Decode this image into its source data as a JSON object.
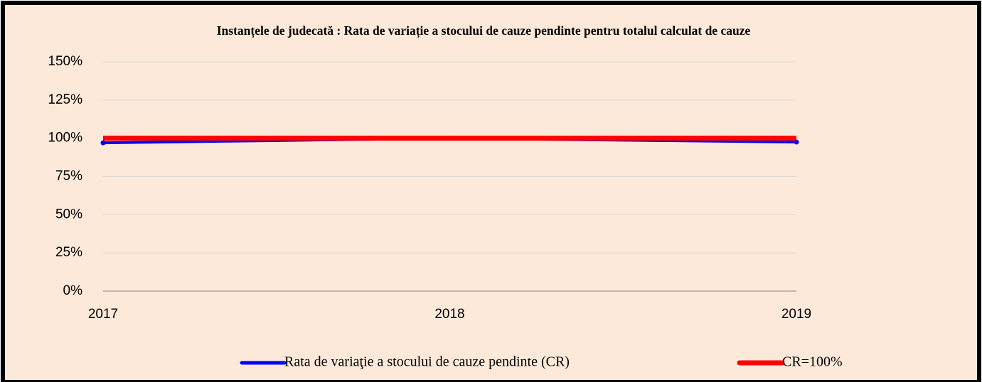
{
  "chart_data": {
    "type": "line",
    "title": "Instanțele de judecată : Rata de variație a stocului de cauze pendinte pentru totalul calculat de cauze",
    "categories": [
      "2017",
      "2018",
      "2019"
    ],
    "series": [
      {
        "name": "Rata de variaţie a stocului de cauze pendinte (CR)",
        "color": "#0000ff",
        "values": [
          97,
          100,
          97.5
        ]
      },
      {
        "name": "CR=100%",
        "color": "#ff0000",
        "values": [
          100,
          100,
          100
        ]
      }
    ],
    "ylim": [
      0,
      150
    ],
    "yticks": [
      {
        "value": 0,
        "label": "0%"
      },
      {
        "value": 25,
        "label": "25%"
      },
      {
        "value": 50,
        "label": "50%"
      },
      {
        "value": 75,
        "label": "75%"
      },
      {
        "value": 100,
        "label": "100%"
      },
      {
        "value": 125,
        "label": "125%"
      },
      {
        "value": 150,
        "label": "150%"
      }
    ],
    "grid": true,
    "legend": "bottom"
  }
}
